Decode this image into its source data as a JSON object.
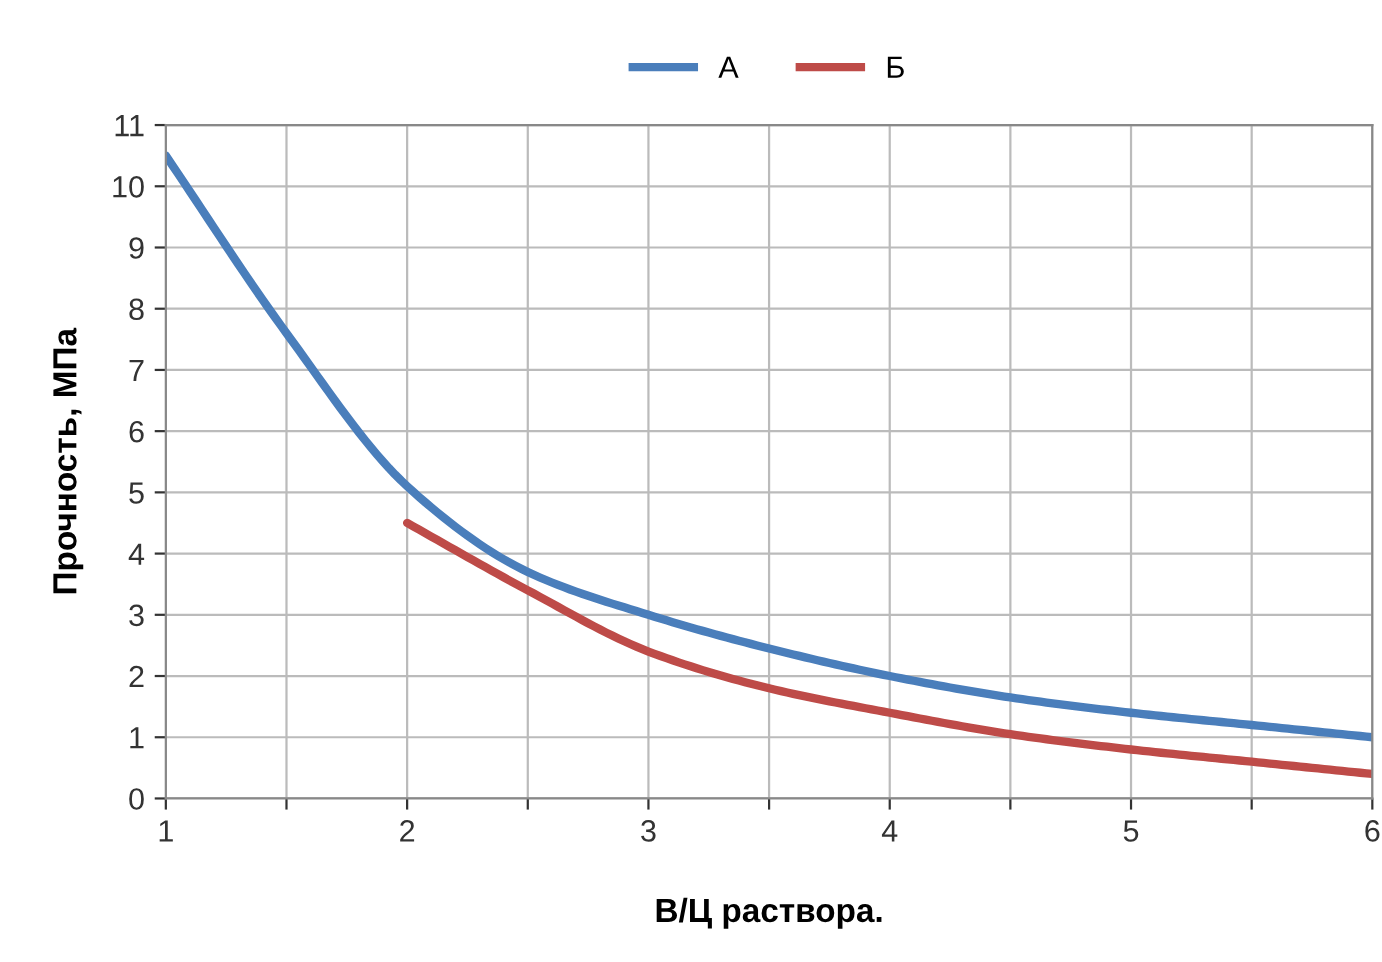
{
  "chart_data": {
    "type": "line",
    "xlabel": "В/Ц раствора.",
    "ylabel": "Прочность, МПа",
    "x": [
      1,
      1.5,
      2,
      2.5,
      3,
      3.5,
      4,
      4.5,
      5,
      5.5,
      6
    ],
    "series": [
      {
        "name": "А",
        "color": "#4a7ebb",
        "values": [
          10.5,
          7.6,
          5.1,
          3.7,
          3.0,
          2.45,
          2.0,
          1.65,
          1.4,
          1.2,
          1.0
        ]
      },
      {
        "name": "Б",
        "color": "#be4b48",
        "values": [
          null,
          null,
          4.5,
          3.4,
          2.4,
          1.8,
          1.4,
          1.05,
          0.8,
          0.6,
          0.4
        ]
      }
    ],
    "xlim": [
      1,
      6
    ],
    "ylim": [
      0,
      11
    ],
    "xticks": [
      1,
      {
        "value": 1.5,
        "label": null
      },
      2,
      {
        "value": 2.5,
        "label": null
      },
      3,
      {
        "value": 3.5,
        "label": null
      },
      4,
      {
        "value": 4.5,
        "label": null
      },
      5,
      {
        "value": 5.5,
        "label": null
      },
      6
    ],
    "yticks": [
      0,
      1,
      2,
      3,
      4,
      5,
      6,
      7,
      8,
      9,
      10,
      11
    ],
    "grid": true,
    "legend": "top",
    "marker": "none",
    "line_style": "solid"
  }
}
